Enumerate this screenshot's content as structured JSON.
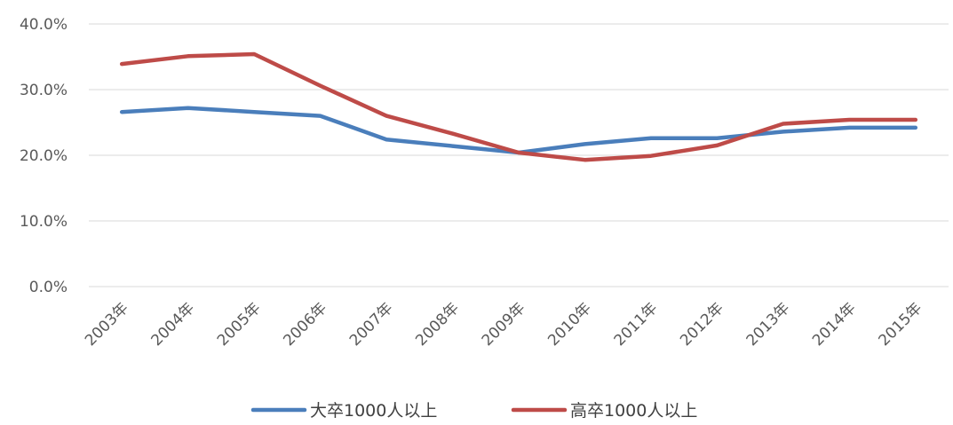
{
  "chart_data": {
    "type": "line",
    "title": "",
    "xlabel": "",
    "ylabel": "",
    "categories": [
      "2003年",
      "2004年",
      "2005年",
      "2006年",
      "2007年",
      "2008年",
      "2009年",
      "2010年",
      "2011年",
      "2012年",
      "2013年",
      "2014年",
      "2015年"
    ],
    "series": [
      {
        "name": "大卒1000人以上",
        "color": "#4a7ebb",
        "values": [
          26.6,
          27.2,
          26.6,
          26.0,
          22.4,
          21.4,
          20.4,
          21.7,
          22.6,
          22.6,
          23.6,
          24.2,
          24.2
        ]
      },
      {
        "name": "高卒1000人以上",
        "color": "#be4b48",
        "values": [
          33.9,
          35.1,
          35.4,
          30.6,
          26.0,
          23.3,
          20.4,
          19.3,
          19.9,
          21.5,
          24.8,
          25.4,
          25.4
        ]
      }
    ],
    "ylim": [
      0,
      40
    ],
    "yticks": [
      "0.0%",
      "10.0%",
      "20.0%",
      "30.0%",
      "40.0%"
    ],
    "grid": true,
    "legend_position": "bottom"
  }
}
